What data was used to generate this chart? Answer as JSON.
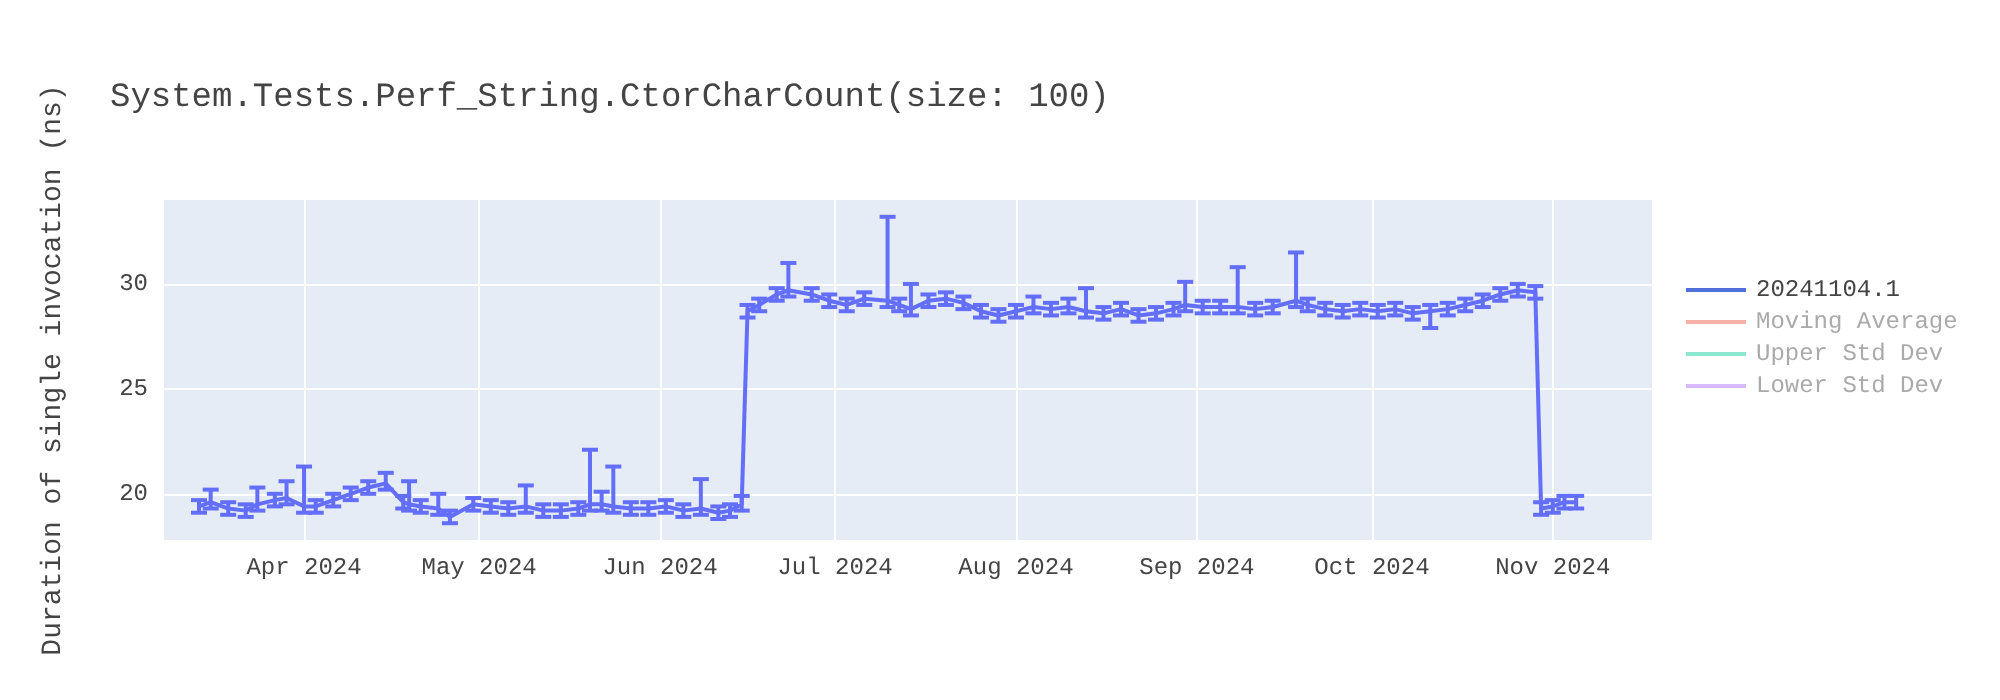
{
  "chart_data": {
    "type": "line",
    "title": "System.Tests.Perf_String.CtorCharCount(size: 100)",
    "ylabel": "Duration of single invocation (ns)",
    "x": [
      "2024-03-14",
      "2024-03-16",
      "2024-03-19",
      "2024-03-22",
      "2024-03-24",
      "2024-03-27",
      "2024-03-29",
      "2024-04-01",
      "2024-04-03",
      "2024-04-06",
      "2024-04-09",
      "2024-04-12",
      "2024-04-15",
      "2024-04-18",
      "2024-04-19",
      "2024-04-21",
      "2024-04-24",
      "2024-04-26",
      "2024-04-30",
      "2024-05-03",
      "2024-05-06",
      "2024-05-09",
      "2024-05-12",
      "2024-05-15",
      "2024-05-18",
      "2024-05-20",
      "2024-05-22",
      "2024-05-24",
      "2024-05-27",
      "2024-05-30",
      "2024-06-02",
      "2024-06-05",
      "2024-06-08",
      "2024-06-11",
      "2024-06-13",
      "2024-06-15",
      "2024-06-16",
      "2024-06-18",
      "2024-06-21",
      "2024-06-23",
      "2024-06-27",
      "2024-06-30",
      "2024-07-03",
      "2024-07-06",
      "2024-07-10",
      "2024-07-12",
      "2024-07-14",
      "2024-07-17",
      "2024-07-20",
      "2024-07-23",
      "2024-07-26",
      "2024-07-29",
      "2024-08-01",
      "2024-08-04",
      "2024-08-07",
      "2024-08-10",
      "2024-08-13",
      "2024-08-16",
      "2024-08-19",
      "2024-08-22",
      "2024-08-25",
      "2024-08-28",
      "2024-08-30",
      "2024-09-02",
      "2024-09-05",
      "2024-09-08",
      "2024-09-11",
      "2024-09-14",
      "2024-09-18",
      "2024-09-20",
      "2024-09-23",
      "2024-09-26",
      "2024-09-29",
      "2024-10-02",
      "2024-10-05",
      "2024-10-08",
      "2024-10-11",
      "2024-10-14",
      "2024-10-17",
      "2024-10-20",
      "2024-10-23",
      "2024-10-26",
      "2024-10-29",
      "2024-10-30",
      "2024-11-01",
      "2024-11-03",
      "2024-11-05"
    ],
    "series": [
      {
        "name": "20241104.1",
        "color": "#636efa",
        "values": [
          19.4,
          19.6,
          19.3,
          19.2,
          19.5,
          19.7,
          19.8,
          19.4,
          19.4,
          19.7,
          20.0,
          20.3,
          20.5,
          19.6,
          19.5,
          19.4,
          19.3,
          18.9,
          19.5,
          19.4,
          19.3,
          19.4,
          19.2,
          19.2,
          19.3,
          19.5,
          19.5,
          19.4,
          19.3,
          19.3,
          19.4,
          19.2,
          19.3,
          19.1,
          19.2,
          19.5,
          28.7,
          29.0,
          29.5,
          29.7,
          29.5,
          29.2,
          29.0,
          29.3,
          29.2,
          29.0,
          28.8,
          29.2,
          29.3,
          29.1,
          28.7,
          28.5,
          28.7,
          28.9,
          28.8,
          28.9,
          28.7,
          28.6,
          28.8,
          28.5,
          28.6,
          28.8,
          29.0,
          28.9,
          28.9,
          28.9,
          28.8,
          28.9,
          29.2,
          29.0,
          28.8,
          28.7,
          28.8,
          28.7,
          28.8,
          28.6,
          28.7,
          28.8,
          29.0,
          29.2,
          29.5,
          29.7,
          29.6,
          19.3,
          19.4,
          19.6,
          19.6
        ],
        "errors": [
          0.3,
          [
            19.3,
            20.2
          ],
          0.3,
          0.3,
          [
            19.2,
            20.3
          ],
          0.3,
          [
            19.5,
            20.6
          ],
          [
            19.1,
            21.3
          ],
          0.3,
          0.3,
          0.3,
          0.3,
          [
            20.2,
            21.0
          ],
          0.3,
          [
            19.2,
            20.6
          ],
          0.3,
          [
            19.0,
            20.0
          ],
          0.3,
          0.3,
          0.3,
          0.3,
          [
            19.1,
            20.4
          ],
          0.3,
          0.3,
          0.3,
          [
            19.2,
            22.1
          ],
          [
            19.2,
            20.1
          ],
          [
            19.1,
            21.3
          ],
          0.3,
          0.3,
          0.3,
          0.3,
          [
            19.0,
            20.7
          ],
          0.3,
          0.3,
          [
            19.2,
            19.9
          ],
          0.3,
          0.3,
          0.3,
          [
            29.4,
            31.0
          ],
          0.3,
          0.3,
          0.3,
          0.3,
          [
            28.9,
            33.2
          ],
          0.3,
          [
            28.5,
            30.0
          ],
          0.3,
          0.3,
          0.3,
          0.3,
          0.3,
          0.3,
          [
            28.6,
            29.4
          ],
          0.3,
          [
            28.6,
            29.3
          ],
          [
            28.4,
            29.8
          ],
          0.3,
          0.3,
          0.3,
          0.3,
          0.3,
          [
            28.7,
            30.1
          ],
          0.3,
          0.3,
          [
            28.6,
            30.8
          ],
          0.3,
          0.3,
          [
            28.9,
            31.5
          ],
          0.3,
          0.3,
          0.3,
          0.3,
          0.3,
          0.3,
          0.3,
          [
            27.9,
            29.0
          ],
          0.3,
          0.3,
          0.3,
          0.3,
          0.3,
          0.3,
          0.3,
          0.3,
          0.3,
          0.3
        ]
      },
      {
        "name": "Moving Average",
        "color": "#ef553b",
        "values": [
          null,
          null,
          null,
          null,
          null,
          null,
          null,
          null,
          null,
          null,
          null,
          null,
          null,
          null,
          null,
          null,
          null,
          null,
          null,
          null,
          null,
          null,
          null,
          null,
          null,
          null,
          null,
          null,
          null,
          null,
          null,
          null,
          null,
          null,
          null,
          null,
          null,
          null,
          null,
          null,
          null,
          null,
          null,
          null,
          null,
          null,
          null,
          null,
          null,
          null,
          null,
          null,
          null,
          null,
          null,
          null,
          null,
          null,
          null,
          null,
          null,
          null,
          null,
          null,
          null,
          null,
          null,
          null,
          null,
          null,
          null,
          null,
          null,
          null,
          null,
          null,
          null,
          null,
          null,
          null,
          null,
          null,
          null,
          null,
          null,
          null,
          null
        ]
      },
      {
        "name": "Upper Std Dev",
        "color": "#00cc96",
        "values": [
          null,
          null,
          null,
          null,
          null,
          null,
          null,
          null,
          null,
          null,
          null,
          null,
          null,
          null,
          null,
          null,
          null,
          null,
          null,
          null,
          null,
          null,
          null,
          null,
          null,
          null,
          null,
          null,
          null,
          null,
          null,
          null,
          null,
          null,
          null,
          null,
          null,
          null,
          null,
          null,
          null,
          null,
          null,
          null,
          null,
          null,
          null,
          null,
          null,
          null,
          null,
          null,
          null,
          null,
          null,
          null,
          null,
          null,
          null,
          null,
          null,
          null,
          null,
          null,
          null,
          null,
          null,
          null,
          null,
          null,
          null,
          null,
          null,
          null,
          null,
          null,
          null,
          null,
          null,
          null,
          null,
          null,
          null,
          null,
          null,
          null,
          null
        ]
      },
      {
        "name": "Lower Std Dev",
        "color": "#ab63fa",
        "values": [
          null,
          null,
          null,
          null,
          null,
          null,
          null,
          null,
          null,
          null,
          null,
          null,
          null,
          null,
          null,
          null,
          null,
          null,
          null,
          null,
          null,
          null,
          null,
          null,
          null,
          null,
          null,
          null,
          null,
          null,
          null,
          null,
          null,
          null,
          null,
          null,
          null,
          null,
          null,
          null,
          null,
          null,
          null,
          null,
          null,
          null,
          null,
          null,
          null,
          null,
          null,
          null,
          null,
          null,
          null,
          null,
          null,
          null,
          null,
          null,
          null,
          null,
          null,
          null,
          null,
          null,
          null,
          null,
          null,
          null,
          null,
          null,
          null,
          null,
          null,
          null,
          null,
          null,
          null,
          null,
          null,
          null,
          null,
          null,
          null,
          null,
          null
        ]
      }
    ],
    "xlim": [
      "2024-03-08",
      "2024-11-18"
    ],
    "xticks": [
      {
        "value": "2024-04-01",
        "label": "Apr 2024"
      },
      {
        "value": "2024-05-01",
        "label": "May 2024"
      },
      {
        "value": "2024-06-01",
        "label": "Jun 2024"
      },
      {
        "value": "2024-07-01",
        "label": "Jul 2024"
      },
      {
        "value": "2024-08-01",
        "label": "Aug 2024"
      },
      {
        "value": "2024-09-01",
        "label": "Sep 2024"
      },
      {
        "value": "2024-10-01",
        "label": "Oct 2024"
      },
      {
        "value": "2024-11-01",
        "label": "Nov 2024"
      }
    ],
    "ylim": [
      17.8,
      34
    ],
    "yticks": [
      20,
      25,
      30
    ],
    "grid": true,
    "legend": "top right"
  }
}
